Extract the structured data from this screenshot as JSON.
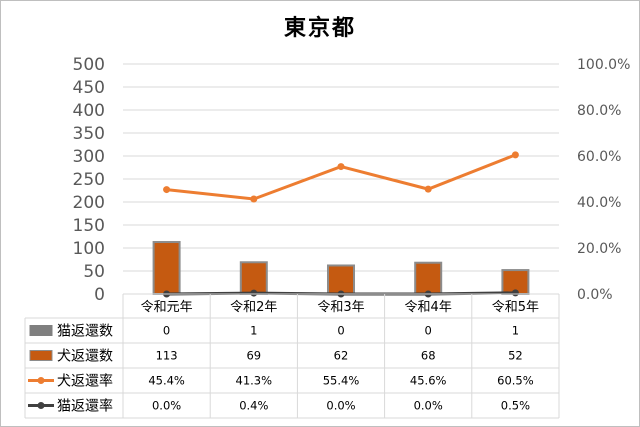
{
  "chart_data": {
    "type": "bar",
    "title": "東京都",
    "categories": [
      "令和元年",
      "令和2年",
      "令和3年",
      "令和4年",
      "令和5年"
    ],
    "left_axis": {
      "range": [
        0,
        500
      ],
      "ticks": [
        "0",
        "50",
        "100",
        "150",
        "200",
        "250",
        "300",
        "350",
        "400",
        "450",
        "500"
      ]
    },
    "right_axis": {
      "range": [
        0,
        100
      ],
      "ticks": [
        "0.0%",
        "20.0%",
        "40.0%",
        "60.0%",
        "80.0%",
        "100.0%"
      ]
    },
    "grid": true,
    "legend_placement": "data-table",
    "series": [
      {
        "name": "猫返還数",
        "kind": "bar",
        "axis": "left",
        "color": "#7f7f7f",
        "values": [
          0,
          1,
          0,
          0,
          1
        ],
        "labels": [
          "0",
          "1",
          "0",
          "0",
          "1"
        ]
      },
      {
        "name": "犬返還数",
        "kind": "bar",
        "axis": "left",
        "color": "#c55a11",
        "edge_color": "#8c8c8c",
        "values": [
          113,
          69,
          62,
          68,
          52
        ],
        "labels": [
          "113",
          "69",
          "62",
          "68",
          "52"
        ]
      },
      {
        "name": "犬返還率",
        "kind": "line",
        "axis": "right",
        "color": "#ed7d31",
        "values": [
          45.4,
          41.3,
          55.4,
          45.6,
          60.5
        ],
        "labels": [
          "45.4%",
          "41.3%",
          "55.4%",
          "45.6%",
          "60.5%"
        ]
      },
      {
        "name": "猫返還率",
        "kind": "line",
        "axis": "right",
        "color": "#404040",
        "values": [
          0.0,
          0.4,
          0.0,
          0.0,
          0.5
        ],
        "labels": [
          "0.0%",
          "0.4%",
          "0.0%",
          "0.0%",
          "0.5%"
        ]
      }
    ]
  }
}
